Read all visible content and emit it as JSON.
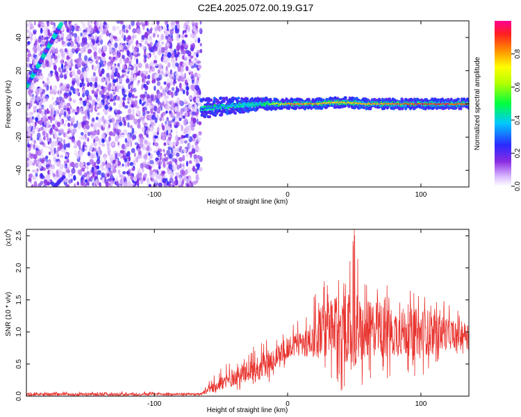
{
  "page": {
    "title": "C2E4.2025.072.00.19.G17"
  },
  "colors": {
    "snr_line": "#e8332e",
    "spectrogram_noise": "#7a2cf0",
    "ridge_low": "#1a3bff",
    "ridge_high": "#ff2020"
  },
  "chart_data": [
    {
      "type": "heatmap",
      "xlabel": "Height of straight line (km)",
      "ylabel": "Frequency (Hz)",
      "xlim": [
        -196,
        136
      ],
      "ylim": [
        -50,
        50
      ],
      "xticks": [
        -100,
        0,
        100
      ],
      "xtick_labels": [
        "-100",
        "0",
        "100"
      ],
      "yticks": [
        -40,
        -20,
        0,
        20,
        40
      ],
      "ytick_labels": [
        "-40",
        "-20",
        "0",
        "20",
        "40"
      ],
      "colorbar": {
        "label": "Normalized spectral amplitude",
        "range": [
          0.0,
          1.0
        ],
        "ticks": [
          0.0,
          0.2,
          0.4,
          0.6,
          0.8
        ],
        "tick_labels": [
          "0.0",
          "0.2",
          "0.4",
          "0.6",
          "0.8"
        ],
        "colormap": "rainbow (white→purple→blue→cyan→green→yellow→red)"
      },
      "features": {
        "noise_region_x": [
          -196,
          -65
        ],
        "diagonal_track": {
          "start": [
            -196,
            10
          ],
          "end": [
            -170,
            48
          ]
        },
        "lower_diagonal_stub": {
          "start": [
            -175,
            -50
          ],
          "end": [
            -168,
            -44
          ]
        },
        "signal_ridge": {
          "x": [
            -65,
            -55,
            -40,
            -20,
            0,
            20,
            40,
            60,
            80,
            100,
            120,
            136
          ],
          "y": [
            -3,
            -2,
            -1,
            0,
            0,
            0,
            1,
            0,
            0,
            0,
            0,
            0
          ],
          "amplitude": [
            0.3,
            0.35,
            0.4,
            0.45,
            0.9,
            0.85,
            0.8,
            0.85,
            0.9,
            0.95,
            0.95,
            0.9
          ]
        }
      },
      "grid": false
    },
    {
      "type": "line",
      "xlabel": "Height of straight line (km)",
      "ylabel": "SNR (10 * v/v)",
      "y_multiplier_label": "(x10",
      "y_multiplier_exp": "4",
      "y_multiplier_close": ")",
      "xlim": [
        -196,
        136
      ],
      "ylim": [
        0,
        2.6
      ],
      "xticks": [
        -100,
        0,
        100
      ],
      "xtick_labels": [
        "-100",
        "0",
        "100"
      ],
      "yticks": [
        0,
        0.5,
        1.0,
        1.5,
        2.0,
        2.5
      ],
      "ytick_labels": [
        "0.0",
        "0.5",
        "1.0",
        "1.5",
        "2.0",
        "2.5"
      ],
      "series": [
        {
          "color": "#e8332e",
          "envelope": {
            "x": [
              -196,
              -120,
              -65,
              -55,
              -45,
              -35,
              -25,
              -15,
              -5,
              5,
              15,
              25,
              35,
              45,
              50,
              55,
              65,
              75,
              85,
              95,
              105,
              115,
              125,
              136
            ],
            "mean": [
              0.03,
              0.03,
              0.03,
              0.15,
              0.25,
              0.35,
              0.42,
              0.5,
              0.7,
              0.8,
              0.85,
              1.0,
              1.05,
              1.05,
              1.05,
              1.0,
              1.05,
              1.0,
              1.0,
              1.0,
              1.0,
              0.98,
              0.97,
              0.98
            ],
            "max": [
              0.07,
              0.08,
              0.05,
              0.35,
              0.55,
              0.6,
              0.8,
              0.95,
              1.05,
              1.2,
              1.35,
              1.85,
              1.8,
              1.95,
              2.62,
              1.85,
              1.7,
              1.75,
              1.7,
              1.65,
              1.65,
              1.55,
              1.4,
              1.3
            ],
            "min": [
              0.0,
              0.0,
              0.0,
              0.05,
              0.05,
              0.1,
              0.1,
              0.15,
              0.4,
              0.55,
              0.6,
              0.25,
              0.1,
              0.05,
              0.2,
              0.15,
              0.1,
              0.25,
              0.3,
              0.3,
              0.35,
              0.5,
              0.6,
              0.7
            ]
          }
        }
      ],
      "grid": false
    }
  ]
}
